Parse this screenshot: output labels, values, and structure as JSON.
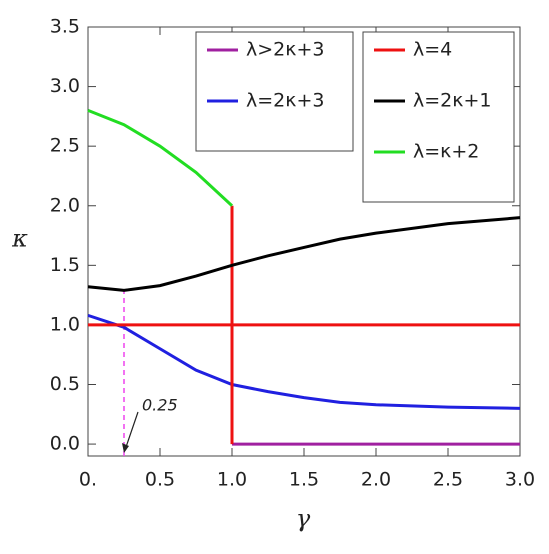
{
  "chart_data": {
    "type": "line",
    "xlabel": "γ",
    "ylabel": "κ",
    "xlim": [
      0,
      3
    ],
    "ylim": [
      -0.1,
      3.5
    ],
    "xticks": [
      {
        "value": 0,
        "label": "0."
      },
      0.5,
      {
        "value": 1,
        "label": "1.0"
      },
      1.5,
      {
        "value": 2,
        "label": "2.0"
      },
      2.5,
      {
        "value": 3,
        "label": "3.0"
      }
    ],
    "yticks": [
      {
        "value": 0,
        "label": "0.0"
      },
      0.5,
      {
        "value": 1,
        "label": "1.0"
      },
      1.5,
      {
        "value": 2,
        "label": "2.0"
      },
      2.5,
      {
        "value": 3,
        "label": "3.0"
      },
      3.5
    ],
    "series": [
      {
        "name": "λ>2κ+3",
        "color": "#a020a0",
        "x": [
          1,
          3
        ],
        "values": [
          0,
          0
        ]
      },
      {
        "name": "λ=2κ+3",
        "color": "#2020e0",
        "x": [
          0,
          0.25,
          0.5,
          0.75,
          1,
          1.25,
          1.5,
          1.75,
          2,
          2.5,
          3
        ],
        "values": [
          1.08,
          0.98,
          0.8,
          0.62,
          0.5,
          0.44,
          0.39,
          0.35,
          0.33,
          0.31,
          0.3
        ]
      },
      {
        "name": "λ=4",
        "color": "#ee1111",
        "x": [
          0,
          3,
          3,
          1,
          1
        ],
        "values": [
          1,
          1,
          null,
          0,
          2
        ]
      },
      {
        "name": "λ=2κ+1",
        "color": "#000000",
        "x": [
          0,
          0.25,
          0.5,
          0.75,
          1,
          1.25,
          1.5,
          1.75,
          2,
          2.5,
          3
        ],
        "values": [
          1.32,
          1.29,
          1.33,
          1.41,
          1.5,
          1.58,
          1.65,
          1.72,
          1.77,
          1.85,
          1.9
        ]
      },
      {
        "name": "λ=κ+2",
        "color": "#22dd22",
        "x": [
          0,
          0.25,
          0.5,
          0.75,
          1
        ],
        "values": [
          2.8,
          2.68,
          2.5,
          2.28,
          2.0
        ]
      }
    ],
    "annotations": [
      {
        "text": "0.25",
        "x": 0.25,
        "y_top": 1.29,
        "color": "#ee44ee"
      }
    ]
  }
}
